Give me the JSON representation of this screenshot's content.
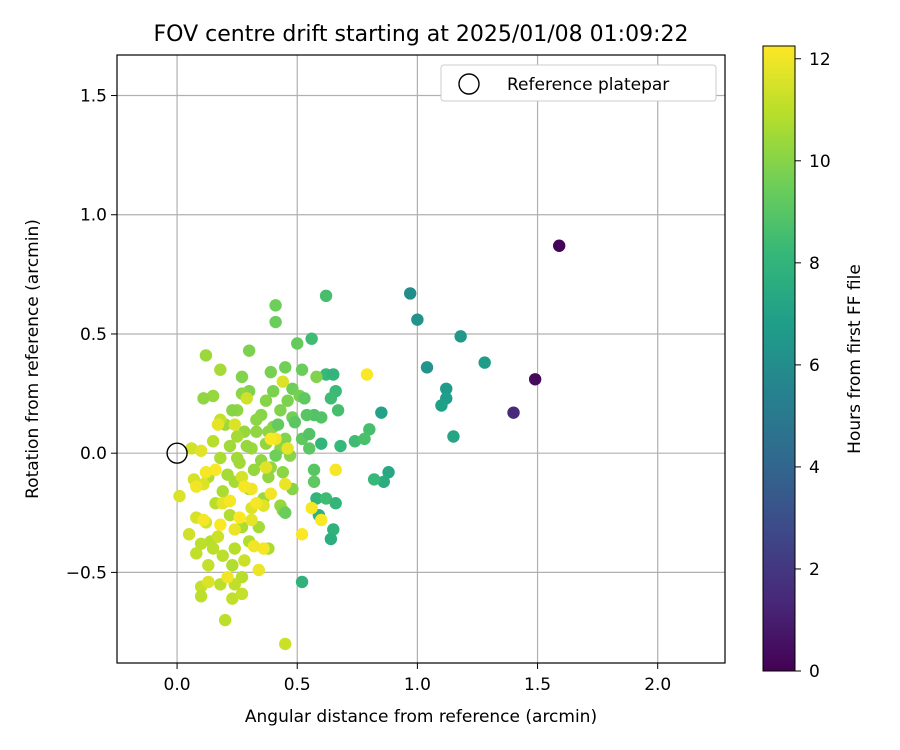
{
  "chart_data": {
    "type": "scatter",
    "title": "FOV centre drift starting at 2025/01/08 01:09:22",
    "xlabel": "Angular distance from reference (arcmin)",
    "ylabel": "Rotation from reference (arcmin)",
    "xlim": [
      -0.25,
      2.28
    ],
    "ylim": [
      -0.88,
      1.67
    ],
    "xticks": [
      0.0,
      0.5,
      1.0,
      1.5,
      2.0
    ],
    "xtick_labels": [
      "0.0",
      "0.5",
      "1.0",
      "1.5",
      "2.0"
    ],
    "yticks": [
      -0.5,
      0.0,
      0.5,
      1.0,
      1.5
    ],
    "ytick_labels": [
      "−0.5",
      "0.0",
      "0.5",
      "1.0",
      "1.5"
    ],
    "grid": true,
    "legend": {
      "position": "top-right",
      "entries": [
        "Reference platepar"
      ]
    },
    "reference_point": {
      "x": 0.0,
      "y": 0.0
    },
    "colorbar": {
      "label": "Hours from first FF file",
      "colormap": "viridis",
      "range": [
        0,
        12.25
      ],
      "ticks": [
        0,
        2,
        4,
        6,
        8,
        10,
        12
      ],
      "tick_labels": [
        "0",
        "2",
        "4",
        "6",
        "8",
        "10",
        "12"
      ]
    },
    "colormap_colors": [
      "#440154",
      "#482878",
      "#3e4989",
      "#31688e",
      "#26828e",
      "#1f9e89",
      "#35b779",
      "#6ece58",
      "#b5de2b",
      "#fde725"
    ],
    "series": [
      {
        "points": [
          [
            1.59,
            0.87,
            0.1
          ],
          [
            1.49,
            0.31,
            0.3
          ],
          [
            1.4,
            0.17,
            1.5
          ],
          [
            0.97,
            0.67,
            6.0
          ],
          [
            1.0,
            0.56,
            6.2
          ],
          [
            1.18,
            0.49,
            6.5
          ],
          [
            1.28,
            0.38,
            6.7
          ],
          [
            1.04,
            0.36,
            6.3
          ],
          [
            1.12,
            0.27,
            6.6
          ],
          [
            1.12,
            0.23,
            6.8
          ],
          [
            1.1,
            0.2,
            6.9
          ],
          [
            0.85,
            0.17,
            7.0
          ],
          [
            1.15,
            0.07,
            7.2
          ],
          [
            0.88,
            -0.08,
            7.3
          ],
          [
            0.86,
            -0.12,
            7.5
          ],
          [
            0.62,
            0.66,
            8.6
          ],
          [
            0.56,
            0.48,
            8.4
          ],
          [
            0.62,
            0.33,
            8.2
          ],
          [
            0.65,
            0.33,
            8.0
          ],
          [
            0.66,
            0.26,
            8.3
          ],
          [
            0.64,
            0.23,
            8.4
          ],
          [
            0.67,
            0.18,
            8.6
          ],
          [
            0.74,
            0.05,
            8.4
          ],
          [
            0.8,
            0.1,
            8.6
          ],
          [
            0.78,
            0.06,
            8.7
          ],
          [
            0.68,
            0.03,
            8.2
          ],
          [
            0.6,
            0.04,
            8.0
          ],
          [
            0.82,
            -0.11,
            8.2
          ],
          [
            0.58,
            -0.19,
            8.0
          ],
          [
            0.62,
            -0.19,
            8.4
          ],
          [
            0.66,
            -0.21,
            8.1
          ],
          [
            0.59,
            -0.26,
            7.8
          ],
          [
            0.65,
            -0.32,
            7.9
          ],
          [
            0.64,
            -0.36,
            7.7
          ],
          [
            0.52,
            -0.54,
            7.9
          ],
          [
            0.57,
            0.16,
            8.8
          ],
          [
            0.54,
            0.16,
            9.0
          ],
          [
            0.6,
            0.15,
            8.9
          ],
          [
            0.52,
            0.06,
            9.2
          ],
          [
            0.55,
            0.02,
            9.1
          ],
          [
            0.57,
            -0.07,
            9.0
          ],
          [
            0.57,
            -0.12,
            9.2
          ],
          [
            0.5,
            0.46,
            9.3
          ],
          [
            0.41,
            0.62,
            9.5
          ],
          [
            0.41,
            0.55,
            9.4
          ],
          [
            0.45,
            0.36,
            9.6
          ],
          [
            0.3,
            0.43,
            9.8
          ],
          [
            0.39,
            0.34,
            9.7
          ],
          [
            0.52,
            0.35,
            9.4
          ],
          [
            0.58,
            0.32,
            9.9
          ],
          [
            0.48,
            0.27,
            9.5
          ],
          [
            0.51,
            0.24,
            9.7
          ],
          [
            0.46,
            0.22,
            9.8
          ],
          [
            0.43,
            0.18,
            9.9
          ],
          [
            0.48,
            0.15,
            9.6
          ],
          [
            0.37,
            0.22,
            10.0
          ],
          [
            0.3,
            0.26,
            9.9
          ],
          [
            0.27,
            0.25,
            10.1
          ],
          [
            0.4,
            0.26,
            9.8
          ],
          [
            0.35,
            0.16,
            10.0
          ],
          [
            0.25,
            0.18,
            10.2
          ],
          [
            0.33,
            0.14,
            10.1
          ],
          [
            0.4,
            0.11,
            10.0
          ],
          [
            0.45,
            0.06,
            9.9
          ],
          [
            0.38,
            0.09,
            10.1
          ],
          [
            0.28,
            0.09,
            10.3
          ],
          [
            0.37,
            0.04,
            10.2
          ],
          [
            0.31,
            0.02,
            10.4
          ],
          [
            0.43,
            0.02,
            10.1
          ],
          [
            0.47,
            -0.01,
            10.0
          ],
          [
            0.39,
            -0.06,
            10.3
          ],
          [
            0.35,
            -0.03,
            10.2
          ],
          [
            0.22,
            0.03,
            10.5
          ],
          [
            0.2,
            0.12,
            10.4
          ],
          [
            0.25,
            0.07,
            10.6
          ],
          [
            0.18,
            -0.02,
            10.7
          ],
          [
            0.26,
            -0.04,
            10.5
          ],
          [
            0.32,
            -0.07,
            10.3
          ],
          [
            0.38,
            -0.1,
            10.2
          ],
          [
            0.44,
            -0.08,
            10.1
          ],
          [
            0.48,
            -0.15,
            10.0
          ],
          [
            0.43,
            -0.22,
            10.3
          ],
          [
            0.44,
            -0.24,
            10.1
          ],
          [
            0.36,
            -0.19,
            10.4
          ],
          [
            0.3,
            -0.15,
            10.5
          ],
          [
            0.24,
            -0.12,
            10.6
          ],
          [
            0.19,
            -0.16,
            10.7
          ],
          [
            0.13,
            -0.1,
            10.8
          ],
          [
            0.16,
            -0.21,
            10.9
          ],
          [
            0.22,
            -0.26,
            10.8
          ],
          [
            0.27,
            -0.31,
            10.7
          ],
          [
            0.34,
            -0.31,
            10.6
          ],
          [
            0.38,
            -0.4,
            10.7
          ],
          [
            0.3,
            -0.37,
            10.8
          ],
          [
            0.24,
            -0.4,
            10.9
          ],
          [
            0.19,
            -0.43,
            11.0
          ],
          [
            0.14,
            -0.37,
            10.9
          ],
          [
            0.1,
            -0.38,
            11.0
          ],
          [
            0.08,
            -0.42,
            11.1
          ],
          [
            0.23,
            -0.47,
            10.8
          ],
          [
            0.27,
            -0.52,
            10.9
          ],
          [
            0.18,
            -0.55,
            11.0
          ],
          [
            0.24,
            -0.55,
            11.1
          ],
          [
            0.1,
            -0.56,
            11.2
          ],
          [
            0.1,
            -0.6,
            11.0
          ],
          [
            0.23,
            -0.61,
            11.1
          ],
          [
            0.27,
            -0.59,
            11.2
          ],
          [
            0.2,
            -0.7,
            11.0
          ],
          [
            0.45,
            -0.8,
            11.3
          ],
          [
            0.13,
            -0.47,
            11.2
          ],
          [
            0.17,
            -0.35,
            11.3
          ],
          [
            0.12,
            -0.29,
            11.4
          ],
          [
            0.08,
            -0.27,
            11.5
          ],
          [
            0.05,
            -0.34,
            11.4
          ],
          [
            0.01,
            -0.18,
            11.6
          ],
          [
            0.07,
            -0.11,
            11.5
          ],
          [
            0.11,
            -0.13,
            11.6
          ],
          [
            0.06,
            0.02,
            11.4
          ],
          [
            0.1,
            0.01,
            11.7
          ],
          [
            0.12,
            0.41,
            10.4
          ],
          [
            0.18,
            0.35,
            10.6
          ],
          [
            0.15,
            0.24,
            10.3
          ],
          [
            0.11,
            0.23,
            10.2
          ],
          [
            0.27,
            0.32,
            9.9
          ],
          [
            0.23,
            0.18,
            10.0
          ],
          [
            0.53,
            0.23,
            9.2
          ],
          [
            0.55,
            0.08,
            8.9
          ],
          [
            0.49,
            0.13,
            9.1
          ],
          [
            0.42,
            0.12,
            9.3
          ],
          [
            0.41,
            -0.01,
            9.5
          ],
          [
            0.45,
            -0.25,
            9.4
          ],
          [
            0.33,
            0.09,
            10.2
          ],
          [
            0.29,
            0.03,
            10.3
          ],
          [
            0.25,
            -0.02,
            10.5
          ],
          [
            0.21,
            -0.09,
            10.6
          ],
          [
            0.15,
            0.05,
            10.9
          ],
          [
            0.18,
            0.14,
            11.2
          ],
          [
            0.24,
            0.12,
            11.6
          ],
          [
            0.17,
            0.12,
            11.8
          ],
          [
            0.29,
            0.23,
            11.4
          ],
          [
            0.27,
            -0.1,
            11.5
          ],
          [
            0.31,
            -0.23,
            11.6
          ],
          [
            0.36,
            -0.22,
            11.7
          ],
          [
            0.31,
            -0.28,
            11.8
          ],
          [
            0.24,
            -0.32,
            11.9
          ],
          [
            0.19,
            -0.21,
            11.8
          ],
          [
            0.13,
            -0.54,
            11.6
          ],
          [
            0.21,
            -0.52,
            12.0
          ],
          [
            0.34,
            -0.49,
            11.9
          ],
          [
            0.36,
            -0.4,
            12.1
          ],
          [
            0.39,
            -0.17,
            12.0
          ],
          [
            0.37,
            -0.06,
            11.7
          ],
          [
            0.41,
            0.06,
            12.0
          ],
          [
            0.44,
            0.3,
            11.6
          ],
          [
            0.46,
            0.02,
            11.8
          ],
          [
            0.45,
            -0.13,
            11.9
          ],
          [
            0.31,
            -0.15,
            12.0
          ],
          [
            0.28,
            -0.14,
            12.1
          ],
          [
            0.22,
            -0.2,
            12.1
          ],
          [
            0.26,
            -0.27,
            12.2
          ],
          [
            0.33,
            -0.21,
            12.1
          ],
          [
            0.16,
            -0.07,
            12.2
          ],
          [
            0.12,
            -0.08,
            12.1
          ],
          [
            0.08,
            -0.14,
            12.0
          ],
          [
            0.11,
            -0.28,
            12.1
          ],
          [
            0.18,
            -0.3,
            12.2
          ],
          [
            0.32,
            -0.39,
            12.0
          ],
          [
            0.52,
            -0.34,
            12.2
          ],
          [
            0.56,
            -0.23,
            12.1
          ],
          [
            0.6,
            -0.28,
            12.2
          ],
          [
            0.66,
            -0.07,
            12.1
          ],
          [
            0.79,
            0.33,
            12.2
          ],
          [
            0.39,
            0.06,
            12.2
          ],
          [
            0.28,
            -0.45,
            11.3
          ],
          [
            0.15,
            -0.4,
            11.0
          ]
        ]
      }
    ]
  }
}
